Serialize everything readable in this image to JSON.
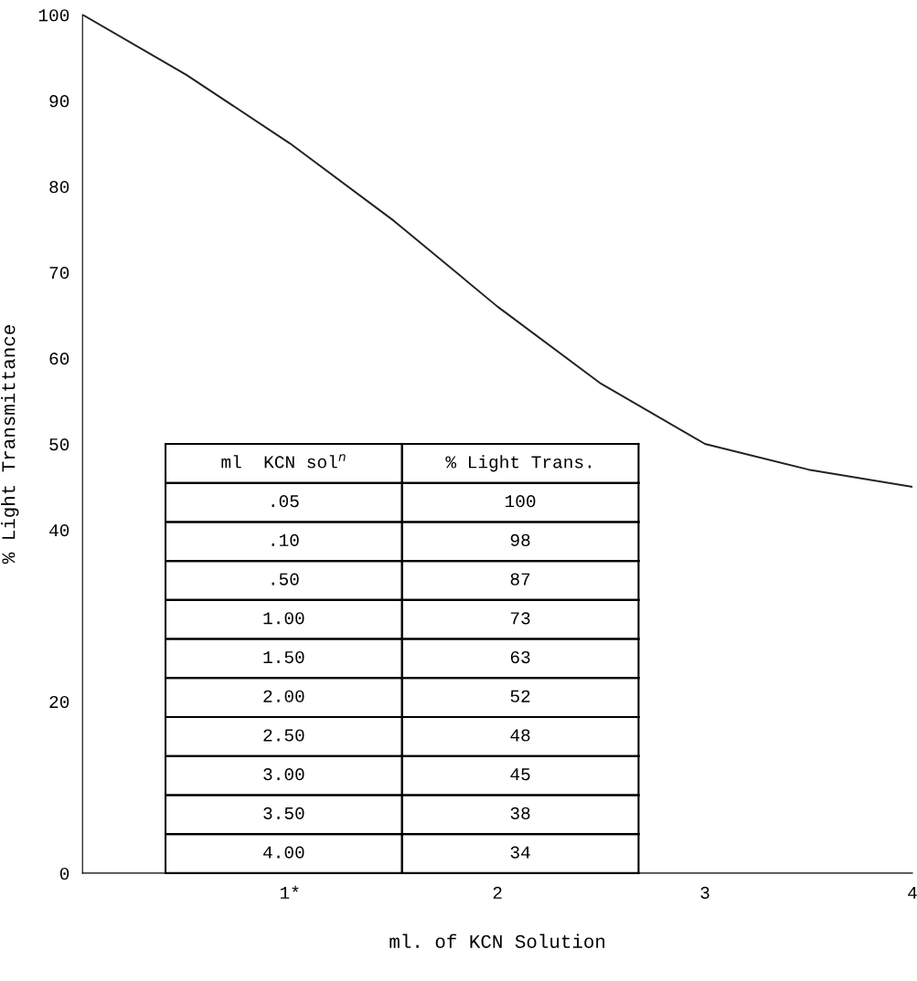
{
  "chart_data": [
    {
      "type": "line",
      "xlabel": "ml. of KCN Solution",
      "ylabel": "% Light Transmittance",
      "x": [
        0,
        0.5,
        1,
        1.5,
        2,
        2.5,
        3,
        3.5,
        4
      ],
      "series": [
        {
          "color": "#222222",
          "values": [
            100,
            93,
            85,
            76,
            66,
            57,
            50,
            47,
            45
          ]
        }
      ],
      "xlim": [
        0,
        4
      ],
      "ylim": [
        0,
        100
      ],
      "xticks": [
        {
          "value": 1,
          "label": "1*"
        },
        2,
        3,
        4
      ],
      "yticks": [
        0,
        20,
        40,
        50,
        60,
        70,
        80,
        90,
        100
      ],
      "grid": false,
      "marker": "none",
      "line_style": "solid"
    },
    {
      "type": "other",
      "annotations": [
        "ml  KCN sol$^{n}$",
        "% Light Trans.",
        ".05",
        "100",
        ".10",
        "98",
        ".50",
        "87",
        "1.00",
        "73",
        "1.50",
        "63",
        "2.00",
        "52",
        "2.50",
        "48",
        "3.00",
        "45",
        "3.50",
        "38",
        "4.00",
        "34"
      ]
    }
  ]
}
